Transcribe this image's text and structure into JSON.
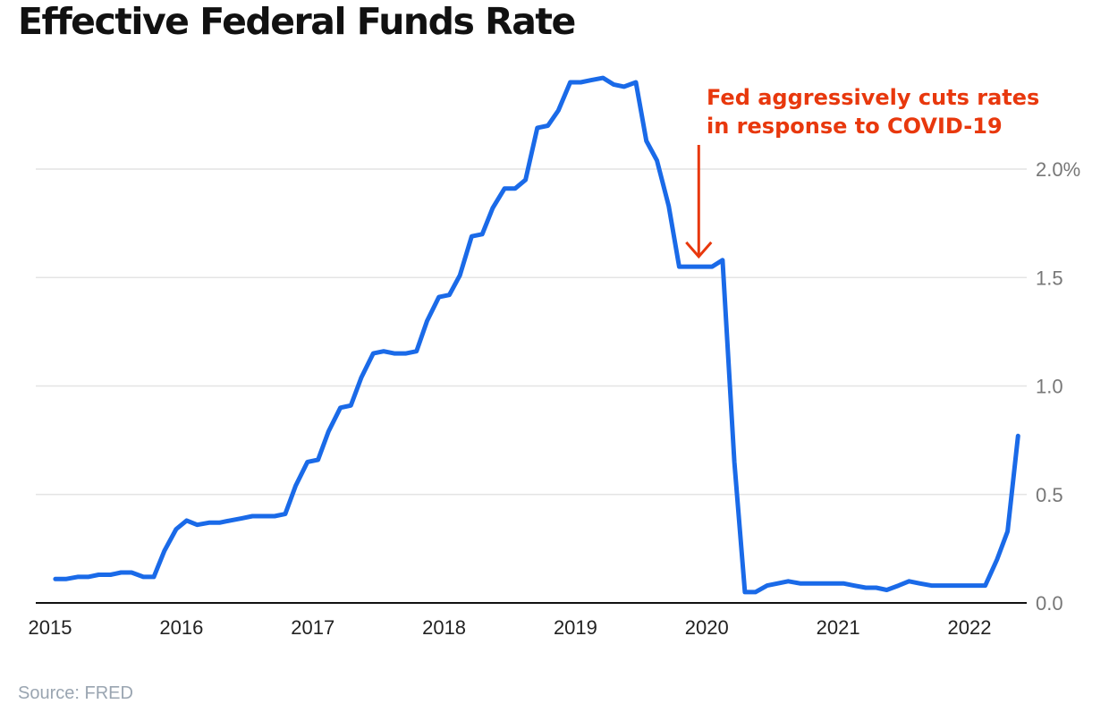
{
  "title": "Effective Federal Funds Rate",
  "source": "Source: FRED",
  "colors": {
    "line": "#1a6ae8",
    "annotation": "#e8380d",
    "grid": "#e4e4e4",
    "axis": "#111111"
  },
  "chart_data": {
    "type": "line",
    "title": "Effective Federal Funds Rate",
    "xlabel": "",
    "ylabel": "",
    "xlim": [
      2015,
      2022.5
    ],
    "ylim": [
      0,
      2.4
    ],
    "y_ticks": [
      0,
      0.5,
      1.0,
      1.5,
      2.0
    ],
    "y_tick_labels": [
      "0.0",
      "0.5",
      "1.0",
      "1.5",
      "2.0%"
    ],
    "x_ticks": [
      2015,
      2016,
      2017,
      2018,
      2019,
      2020,
      2021,
      2022
    ],
    "x_tick_labels": [
      "2015",
      "2016",
      "2017",
      "2018",
      "2019",
      "2020",
      "2021",
      "2022"
    ],
    "grid": "horizontal",
    "y_axis_position": "right",
    "series": [
      {
        "x": [
          2015.04,
          2015.12,
          2015.21,
          2015.29,
          2015.37,
          2015.46,
          2015.54,
          2015.62,
          2015.71,
          2015.79,
          2015.87,
          2015.96,
          2016.04,
          2016.12,
          2016.21,
          2016.29,
          2016.37,
          2016.46,
          2016.54,
          2016.62,
          2016.71,
          2016.79,
          2016.87,
          2016.96,
          2017.04,
          2017.12,
          2017.21,
          2017.29,
          2017.37,
          2017.46,
          2017.54,
          2017.62,
          2017.71,
          2017.79,
          2017.87,
          2017.96,
          2018.04,
          2018.12,
          2018.21,
          2018.29,
          2018.37,
          2018.46,
          2018.54,
          2018.62,
          2018.71,
          2018.79,
          2018.87,
          2018.96,
          2019.04,
          2019.12,
          2019.21,
          2019.29,
          2019.37,
          2019.46,
          2019.54,
          2019.62,
          2019.71,
          2019.79,
          2019.87,
          2019.96,
          2020.04,
          2020.12,
          2020.21,
          2020.29,
          2020.37,
          2020.46,
          2020.54,
          2020.62,
          2020.71,
          2020.79,
          2020.87,
          2020.96,
          2021.04,
          2021.12,
          2021.21,
          2021.29,
          2021.37,
          2021.46,
          2021.54,
          2021.62,
          2021.71,
          2021.79,
          2021.87,
          2021.96,
          2022.04,
          2022.12,
          2022.21,
          2022.29,
          2022.37
        ],
        "values": [
          0.11,
          0.11,
          0.12,
          0.12,
          0.13,
          0.13,
          0.14,
          0.14,
          0.12,
          0.12,
          0.24,
          0.34,
          0.38,
          0.36,
          0.37,
          0.37,
          0.38,
          0.39,
          0.4,
          0.4,
          0.4,
          0.41,
          0.54,
          0.65,
          0.66,
          0.79,
          0.9,
          0.91,
          1.04,
          1.15,
          1.16,
          1.15,
          1.15,
          1.16,
          1.3,
          1.41,
          1.42,
          1.51,
          1.69,
          1.7,
          1.82,
          1.91,
          1.91,
          1.95,
          2.19,
          2.2,
          2.27,
          2.4,
          2.4,
          2.41,
          2.42,
          2.39,
          2.38,
          2.4,
          2.13,
          2.04,
          1.83,
          1.55,
          1.55,
          1.55,
          1.55,
          1.58,
          0.65,
          0.05,
          0.05,
          0.08,
          0.09,
          0.1,
          0.09,
          0.09,
          0.09,
          0.09,
          0.09,
          0.08,
          0.07,
          0.07,
          0.06,
          0.08,
          0.1,
          0.09,
          0.08,
          0.08,
          0.08,
          0.08,
          0.08,
          0.08,
          0.2,
          0.33,
          0.77
        ]
      }
    ],
    "annotations": [
      {
        "lines": [
          "Fed aggressively cuts rates",
          "in response to COVID-19"
        ],
        "x": 2020.0,
        "y": 1.58
      }
    ]
  }
}
